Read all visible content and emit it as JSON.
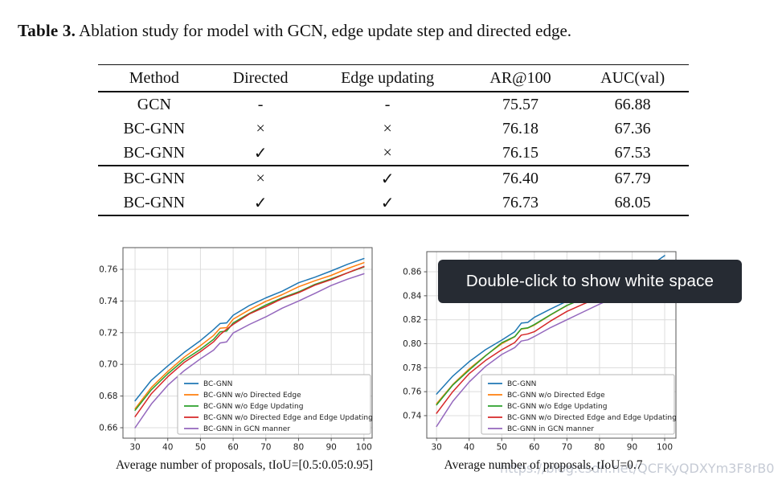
{
  "page": {
    "title_label": "Table 3.",
    "title_text": " Ablation study for model with GCN, edge update step and directed edge."
  },
  "table": {
    "headers": [
      "Method",
      "Directed",
      "Edge updating",
      "AR@100",
      "AUC(val)"
    ],
    "rows": [
      [
        "GCN",
        "-",
        "-",
        "75.57",
        "66.88"
      ],
      [
        "BC-GNN",
        "×",
        "×",
        "76.18",
        "67.36"
      ],
      [
        "BC-GNN",
        "✓",
        "×",
        "76.15",
        "67.53"
      ],
      [
        "BC-GNN",
        "×",
        "✓",
        "76.40",
        "67.79"
      ],
      [
        "BC-GNN",
        "✓",
        "✓",
        "76.73",
        "68.05"
      ]
    ],
    "mid_rule_before_row": 3
  },
  "tooltip": {
    "text": "Double-click to show white space",
    "bg": "#262b33",
    "text_color": "#ffffff"
  },
  "watermark": {
    "text": "https://blog.csdn.net/QCFKyQDXYm3F8rB0",
    "color": "#c6cbd5"
  },
  "chart_data": [
    {
      "type": "line",
      "title": "",
      "xlabel": "Average number of proposals, tIoU=[0.5:0.05:0.95]",
      "ylabel": "",
      "x": [
        30,
        35,
        40,
        45,
        50,
        54,
        56,
        58,
        60,
        65,
        70,
        75,
        80,
        85,
        90,
        95,
        100
      ],
      "xticks": [
        30,
        40,
        50,
        60,
        70,
        80,
        90,
        100
      ],
      "yticks": [
        0.66,
        0.68,
        0.7,
        0.72,
        0.74,
        0.76
      ],
      "xlim": [
        26.3,
        102.5
      ],
      "ylim": [
        0.6534,
        0.7737
      ],
      "grid": true,
      "legend_position": "lower right",
      "series": [
        {
          "name": "BC-GNN",
          "color": "#1f77b4",
          "values": [
            0.677,
            0.69,
            0.699,
            0.7075,
            0.715,
            0.722,
            0.7258,
            0.7262,
            0.731,
            0.7372,
            0.742,
            0.7462,
            0.7515,
            0.755,
            0.759,
            0.7632,
            0.7668
          ]
        },
        {
          "name": "BC-GNN w/o Directed Edge",
          "color": "#ff7f0e",
          "values": [
            0.672,
            0.6855,
            0.6955,
            0.7045,
            0.7118,
            0.7182,
            0.7228,
            0.7232,
            0.7285,
            0.7345,
            0.7398,
            0.744,
            0.749,
            0.7528,
            0.7562,
            0.7605,
            0.7642
          ]
        },
        {
          "name": "BC-GNN w/o Edge Updating",
          "color": "#2ca02c",
          "values": [
            0.671,
            0.684,
            0.694,
            0.7028,
            0.7095,
            0.7158,
            0.7205,
            0.721,
            0.7262,
            0.7322,
            0.7375,
            0.742,
            0.7458,
            0.7505,
            0.754,
            0.7578,
            0.7615
          ]
        },
        {
          "name": "BC-GNN w/o Directed Edge and Edge Updating",
          "color": "#d62728",
          "values": [
            0.667,
            0.6815,
            0.6922,
            0.7012,
            0.708,
            0.7142,
            0.7188,
            0.7222,
            0.7252,
            0.7318,
            0.7365,
            0.7415,
            0.7452,
            0.75,
            0.7535,
            0.7578,
            0.7618
          ]
        },
        {
          "name": "BC-GNN in GCN manner",
          "color": "#9467bd",
          "values": [
            0.66,
            0.675,
            0.6868,
            0.696,
            0.7035,
            0.709,
            0.7135,
            0.7142,
            0.7198,
            0.7252,
            0.73,
            0.7355,
            0.74,
            0.7448,
            0.7498,
            0.7538,
            0.7572
          ]
        }
      ]
    },
    {
      "type": "line",
      "title": "",
      "xlabel": "Average number of proposals, tIoU=0.7",
      "ylabel": "",
      "x": [
        30,
        35,
        40,
        45,
        50,
        54,
        56,
        58,
        60,
        65,
        70,
        75,
        80,
        85,
        90,
        95,
        100
      ],
      "xticks": [
        30,
        40,
        50,
        60,
        70,
        80,
        90,
        100
      ],
      "yticks": [
        0.74,
        0.76,
        0.78,
        0.8,
        0.82,
        0.84,
        0.86
      ],
      "xlim": [
        27.0,
        103.45
      ],
      "ylim": [
        0.7212,
        0.8768
      ],
      "grid": true,
      "legend_position": "lower right",
      "series": [
        {
          "name": "BC-GNN",
          "color": "#1f77b4",
          "values": [
            0.758,
            0.773,
            0.785,
            0.795,
            0.803,
            0.81,
            0.8172,
            0.8178,
            0.822,
            0.829,
            0.8355,
            0.841,
            0.8465,
            0.8515,
            0.8565,
            0.864,
            0.8735
          ]
        },
        {
          "name": "BC-GNN w/o Directed Edge",
          "color": "#ff7f0e",
          "values": [
            0.75,
            0.766,
            0.779,
            0.79,
            0.8,
            0.8058,
            0.8122,
            0.813,
            0.8155,
            0.824,
            0.8318,
            0.838,
            0.8435,
            0.8485,
            0.8535,
            0.859,
            0.8645
          ]
        },
        {
          "name": "BC-GNN w/o Edge Updating",
          "color": "#2ca02c",
          "values": [
            0.749,
            0.7655,
            0.778,
            0.7898,
            0.8008,
            0.806,
            0.8125,
            0.8132,
            0.816,
            0.8242,
            0.832,
            0.8375,
            0.843,
            0.848,
            0.853,
            0.8585,
            0.864
          ]
        },
        {
          "name": "BC-GNN w/o Directed Edge and Edge Updating",
          "color": "#d62728",
          "values": [
            0.742,
            0.76,
            0.775,
            0.786,
            0.795,
            0.801,
            0.8072,
            0.8082,
            0.81,
            0.819,
            0.827,
            0.833,
            0.839,
            0.8445,
            0.85,
            0.8555,
            0.861
          ]
        },
        {
          "name": "BC-GNN in GCN manner",
          "color": "#9467bd",
          "values": [
            0.731,
            0.752,
            0.768,
            0.781,
            0.791,
            0.7968,
            0.8022,
            0.8032,
            0.806,
            0.8135,
            0.82,
            0.8265,
            0.833,
            0.839,
            0.8445,
            0.85,
            0.856
          ]
        }
      ]
    }
  ]
}
